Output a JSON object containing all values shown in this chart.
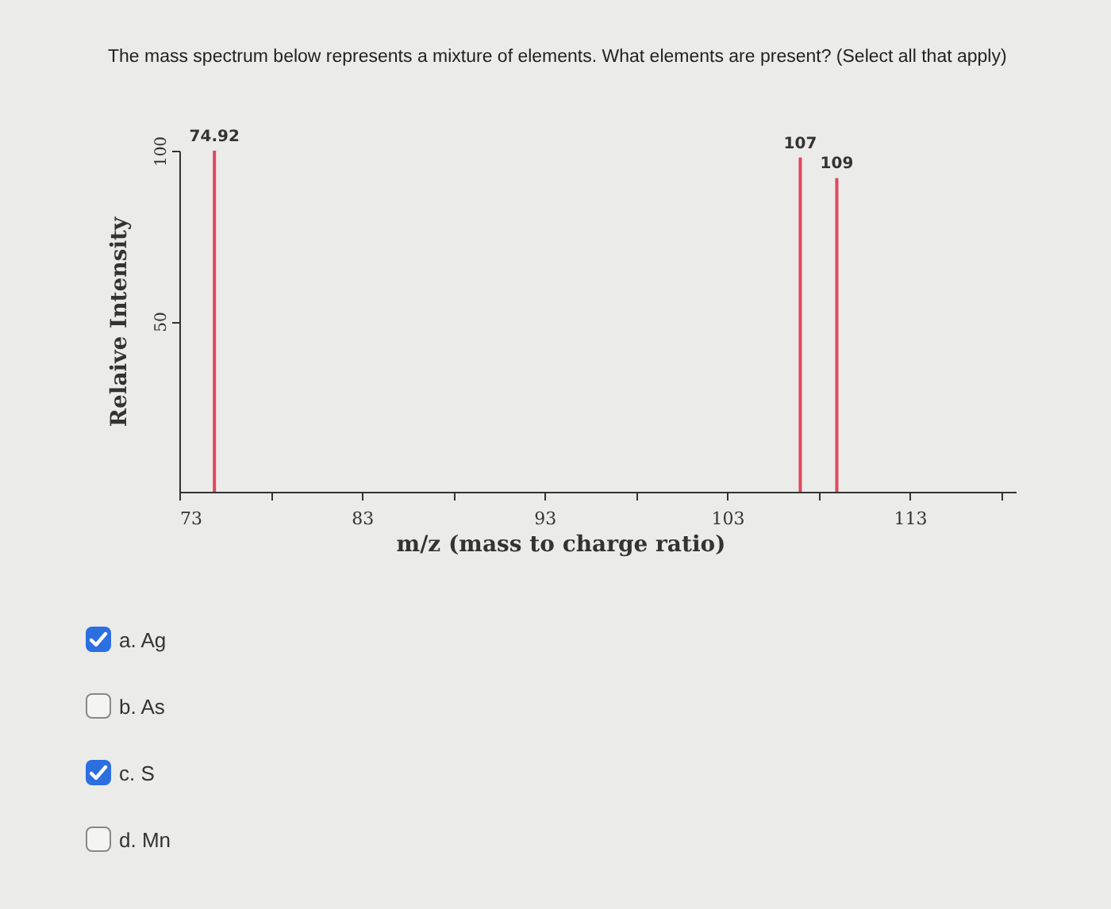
{
  "chart_data": {
    "type": "bar",
    "title": "The mass spectrum below represents a mixture of elements. What elements are present? (Select all that apply)",
    "xlabel": "m/z (mass to charge ratio)",
    "ylabel": "Relaive Intensity",
    "x": [
      74.92,
      107,
      109
    ],
    "series": [
      {
        "color": "#e0485f",
        "values": [
          100,
          98,
          92
        ]
      }
    ],
    "xlim": [
      73,
      118.8
    ],
    "xticks": [
      73,
      {
        "value": 78,
        "label": null
      },
      83,
      {
        "value": 88,
        "label": null
      },
      93,
      {
        "value": 98,
        "label": null
      },
      103,
      {
        "value": 108,
        "label": null
      },
      113,
      {
        "value": 118,
        "label": null
      }
    ],
    "ylim": [
      0,
      100
    ],
    "yticks": [
      50,
      100
    ],
    "grid": false,
    "legend": false,
    "annotations": [
      {
        "text": "74.92",
        "x": 74.92,
        "y": 100
      },
      {
        "text": "107",
        "x": 107,
        "y": 98
      },
      {
        "text": "109",
        "x": 109,
        "y": 92
      },
      "a. Ag",
      "b. As",
      "c. S",
      "d. Mn"
    ]
  }
}
